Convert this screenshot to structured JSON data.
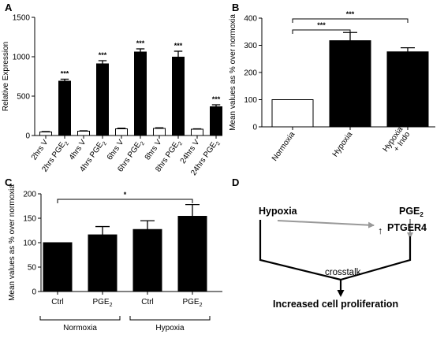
{
  "colors": {
    "filled_bar": "#000000",
    "open_bar": "#ffffff",
    "arrow_gray": "#999999",
    "stroke": "#000000"
  },
  "panels": [
    {
      "letter": "A",
      "chart_data": {
        "type": "bar",
        "title": "",
        "ylabel": "Relative Expression",
        "ylim": [
          0,
          1500
        ],
        "yticks": [
          "0",
          "500",
          "1000",
          "1500"
        ],
        "categories": [
          "2hrs V",
          "2hrs PGE2",
          "4hrs V",
          "4hrs PGE2",
          "6hrs V",
          "6hrs PGE2",
          "8hrs V",
          "8hrs PGE2",
          "24hrs V",
          "24hrs PGE2"
        ],
        "tick_label_parts": [
          {
            "base": "2hrs V",
            "sub": ""
          },
          {
            "base": "2hrs PGE",
            "sub": "2"
          },
          {
            "base": "4hrs V",
            "sub": ""
          },
          {
            "base": "4hrs PGE",
            "sub": "2"
          },
          {
            "base": "6hrs V",
            "sub": ""
          },
          {
            "base": "6hrs PGE",
            "sub": "2"
          },
          {
            "base": "8hrs V",
            "sub": ""
          },
          {
            "base": "8hrs PGE",
            "sub": "2"
          },
          {
            "base": "24hrs V",
            "sub": ""
          },
          {
            "base": "24hrs PGE",
            "sub": "2"
          }
        ],
        "values": [
          45,
          690,
          55,
          910,
          85,
          1060,
          90,
          995,
          80,
          365
        ],
        "errors": [
          5,
          25,
          5,
          40,
          8,
          40,
          8,
          75,
          5,
          25
        ],
        "fill": [
          "open",
          "filled",
          "open",
          "filled",
          "open",
          "filled",
          "open",
          "filled",
          "open",
          "filled"
        ],
        "significance": [
          "",
          "***",
          "",
          "***",
          "",
          "***",
          "",
          "***",
          "",
          "***"
        ]
      }
    },
    {
      "letter": "B",
      "chart_data": {
        "type": "bar",
        "title": "",
        "ylabel": "Mean values as % over normoxia",
        "ylim": [
          0,
          400
        ],
        "yticks": [
          "0",
          "100",
          "200",
          "300",
          "400"
        ],
        "categories": [
          "Normoxia",
          "Hypoxia",
          "Hypoxia\n+ Indo"
        ],
        "tick_lines": [
          [
            "Normoxia"
          ],
          [
            "Hypoxia"
          ],
          [
            "Hypoxia",
            "+ Indo"
          ]
        ],
        "values": [
          100,
          317,
          276
        ],
        "errors": [
          0,
          30,
          15
        ],
        "fill": [
          "open",
          "filled",
          "filled"
        ],
        "brackets": [
          {
            "from": 0,
            "to": 1,
            "label": "***"
          },
          {
            "from": 0,
            "to": 2,
            "label": "***"
          }
        ]
      }
    },
    {
      "letter": "C",
      "chart_data": {
        "type": "bar",
        "title": "",
        "ylabel": "Mean values as % over normoxia",
        "ylim": [
          0,
          200
        ],
        "yticks": [
          "0",
          "50",
          "100",
          "150",
          "200"
        ],
        "categories": [
          "Ctrl",
          "PGE2",
          "Ctrl",
          "PGE2"
        ],
        "tick_label_parts": [
          {
            "base": "Ctrl",
            "sub": ""
          },
          {
            "base": "PGE",
            "sub": "2"
          },
          {
            "base": "Ctrl",
            "sub": ""
          },
          {
            "base": "PGE",
            "sub": "2"
          }
        ],
        "values": [
          100,
          116,
          127,
          154
        ],
        "errors": [
          0,
          17,
          18,
          24
        ],
        "fill": [
          "filled",
          "filled",
          "filled",
          "filled"
        ],
        "groups": [
          {
            "label": "Normoxia",
            "from": 0,
            "to": 1
          },
          {
            "label": "Hypoxia",
            "from": 2,
            "to": 3
          }
        ],
        "brackets": [
          {
            "from": 0,
            "to": 3,
            "label": "*"
          }
        ]
      }
    }
  ],
  "diagram": {
    "letter": "D",
    "hypoxia": "Hypoxia",
    "pge_base": "PGE",
    "pge_sub": "2",
    "ptger4": "PTGER4",
    "up_arrow": "↑",
    "crosstalk": "crosstalk",
    "outcome": "Increased cell proliferation"
  }
}
